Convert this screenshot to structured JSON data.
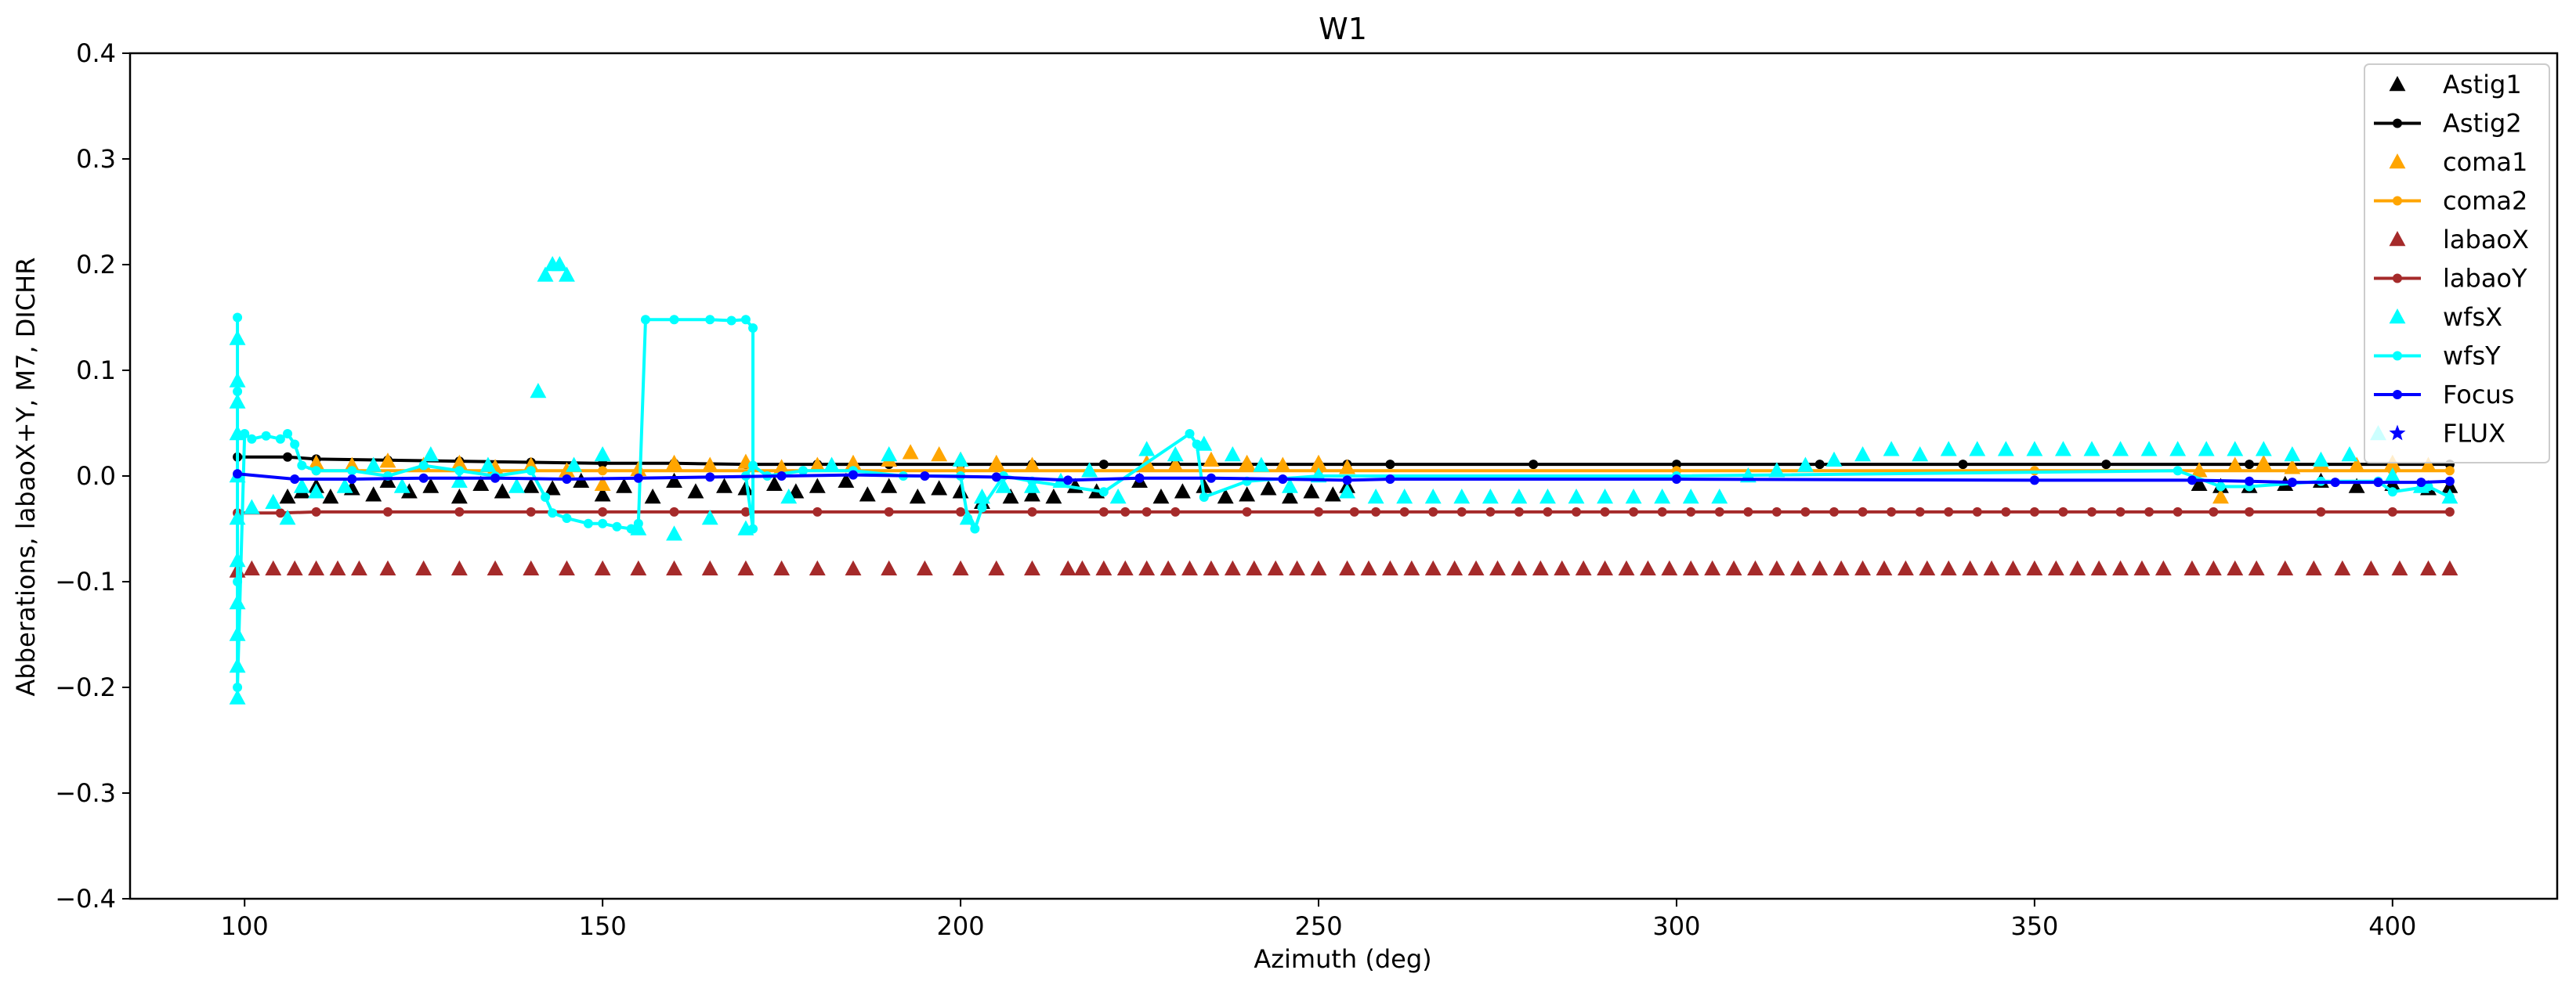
{
  "chart_data": {
    "type": "scatter",
    "title": "W1",
    "xlabel": "Azimuth (deg)",
    "ylabel": "Abberations, labaoX+Y, M7, DICHR",
    "xlim": [
      84,
      423
    ],
    "ylim": [
      -0.4,
      0.4
    ],
    "xticks": [
      100,
      150,
      200,
      250,
      300,
      350,
      400
    ],
    "xtick_labels": [
      "100",
      "150",
      "200",
      "250",
      "300",
      "350",
      "400"
    ],
    "yticks": [
      -0.4,
      -0.3,
      -0.2,
      -0.1,
      0.0,
      0.1,
      0.2,
      0.3,
      0.4
    ],
    "ytick_labels": [
      "−0.4",
      "−0.3",
      "−0.2",
      "−0.1",
      "0.0",
      "0.1",
      "0.2",
      "0.3",
      "0.4"
    ],
    "grid": false,
    "legend_position": "top-right",
    "series": [
      {
        "name": "Astig1",
        "color": "#000000",
        "marker": "triangle",
        "line": false,
        "x": [
          106,
          108,
          110,
          112,
          115,
          118,
          120,
          123,
          126,
          130,
          133,
          136,
          140,
          143,
          147,
          150,
          153,
          157,
          160,
          163,
          167,
          170,
          174,
          177,
          180,
          184,
          187,
          190,
          194,
          197,
          200,
          203,
          207,
          210,
          213,
          216,
          219,
          225,
          228,
          231,
          234,
          237,
          240,
          243,
          246,
          249,
          252,
          254,
          373,
          376,
          380,
          385,
          390,
          395,
          400,
          405,
          408
        ],
        "y": [
          -0.02,
          -0.015,
          -0.01,
          -0.02,
          -0.012,
          -0.018,
          -0.005,
          -0.015,
          -0.01,
          -0.02,
          -0.008,
          -0.015,
          -0.01,
          -0.012,
          -0.005,
          -0.018,
          -0.01,
          -0.02,
          -0.005,
          -0.015,
          -0.01,
          -0.012,
          -0.008,
          -0.015,
          -0.01,
          -0.005,
          -0.018,
          -0.01,
          -0.02,
          -0.012,
          -0.015,
          -0.025,
          -0.02,
          -0.018,
          -0.02,
          -0.01,
          -0.015,
          -0.005,
          -0.02,
          -0.015,
          -0.01,
          -0.02,
          -0.018,
          -0.012,
          -0.02,
          -0.015,
          -0.018,
          -0.01,
          -0.008,
          -0.01,
          -0.01,
          -0.008,
          -0.005,
          -0.01,
          -0.008,
          -0.012,
          -0.01
        ]
      },
      {
        "name": "Astig2",
        "color": "#000000",
        "marker": "dot",
        "line": true,
        "x": [
          99,
          106,
          110,
          120,
          130,
          140,
          150,
          160,
          170,
          180,
          190,
          200,
          210,
          220,
          230,
          240,
          250,
          254,
          260,
          280,
          300,
          320,
          340,
          360,
          380,
          400,
          408
        ],
        "y": [
          0.018,
          0.018,
          0.016,
          0.015,
          0.014,
          0.013,
          0.012,
          0.012,
          0.011,
          0.011,
          0.011,
          0.011,
          0.011,
          0.011,
          0.011,
          0.011,
          0.011,
          0.011,
          0.011,
          0.011,
          0.011,
          0.011,
          0.011,
          0.011,
          0.011,
          0.011,
          0.011
        ]
      },
      {
        "name": "coma1",
        "color": "#ffa500",
        "marker": "triangle",
        "line": false,
        "x": [
          110,
          115,
          120,
          125,
          130,
          135,
          140,
          145,
          150,
          155,
          160,
          165,
          170,
          175,
          180,
          185,
          190,
          193,
          197,
          200,
          205,
          210,
          226,
          230,
          235,
          240,
          245,
          250,
          254,
          373,
          376,
          378,
          382,
          386,
          390,
          395,
          400,
          405
        ],
        "y": [
          0.012,
          0.01,
          0.014,
          0.01,
          0.012,
          0.008,
          0.01,
          0.005,
          -0.008,
          0.006,
          0.012,
          0.01,
          0.013,
          0.008,
          0.01,
          0.012,
          0.015,
          0.022,
          0.02,
          0.015,
          0.012,
          0.01,
          0.012,
          0.01,
          0.015,
          0.012,
          0.01,
          0.012,
          0.008,
          0.005,
          -0.02,
          0.01,
          0.012,
          0.008,
          0.012,
          0.01,
          0.012,
          0.01
        ]
      },
      {
        "name": "coma2",
        "color": "#ffa500",
        "marker": "dot",
        "line": true,
        "x": [
          110,
          150,
          200,
          250,
          300,
          350,
          400,
          408
        ],
        "y": [
          0.005,
          0.005,
          0.005,
          0.005,
          0.005,
          0.005,
          0.005,
          0.005
        ]
      },
      {
        "name": "labaoX",
        "color": "#a52a2a",
        "marker": "triangle",
        "line": false,
        "x": [
          99,
          101,
          104,
          107,
          110,
          113,
          116,
          120,
          125,
          130,
          135,
          140,
          145,
          150,
          155,
          160,
          165,
          170,
          175,
          180,
          185,
          190,
          195,
          200,
          205,
          210,
          215,
          217,
          220,
          223,
          226,
          229,
          232,
          235,
          238,
          241,
          244,
          247,
          250,
          254,
          257,
          260,
          263,
          266,
          269,
          272,
          275,
          278,
          281,
          284,
          287,
          290,
          293,
          296,
          299,
          302,
          305,
          308,
          311,
          314,
          317,
          320,
          323,
          326,
          329,
          332,
          335,
          338,
          341,
          344,
          347,
          350,
          353,
          356,
          359,
          362,
          365,
          368,
          372,
          375,
          378,
          381,
          385,
          389,
          393,
          397,
          401,
          405,
          408
        ],
        "y": [
          -0.09,
          -0.088,
          -0.088,
          -0.088,
          -0.088,
          -0.088,
          -0.088,
          -0.088,
          -0.088,
          -0.088,
          -0.088,
          -0.088,
          -0.088,
          -0.088,
          -0.088,
          -0.088,
          -0.088,
          -0.088,
          -0.088,
          -0.088,
          -0.088,
          -0.088,
          -0.088,
          -0.088,
          -0.088,
          -0.088,
          -0.088,
          -0.088,
          -0.088,
          -0.088,
          -0.088,
          -0.088,
          -0.088,
          -0.088,
          -0.088,
          -0.088,
          -0.088,
          -0.088,
          -0.088,
          -0.088,
          -0.088,
          -0.088,
          -0.088,
          -0.088,
          -0.088,
          -0.088,
          -0.088,
          -0.088,
          -0.088,
          -0.088,
          -0.088,
          -0.088,
          -0.088,
          -0.088,
          -0.088,
          -0.088,
          -0.088,
          -0.088,
          -0.088,
          -0.088,
          -0.088,
          -0.088,
          -0.088,
          -0.088,
          -0.088,
          -0.088,
          -0.088,
          -0.088,
          -0.088,
          -0.088,
          -0.088,
          -0.088,
          -0.088,
          -0.088,
          -0.088,
          -0.088,
          -0.088,
          -0.088,
          -0.088,
          -0.088,
          -0.088,
          -0.088,
          -0.088,
          -0.088,
          -0.088,
          -0.088,
          -0.088,
          -0.088,
          -0.088
        ]
      },
      {
        "name": "labaoY",
        "color": "#a52a2a",
        "marker": "dot",
        "line": true,
        "x": [
          99,
          105,
          110,
          120,
          130,
          140,
          150,
          160,
          170,
          180,
          190,
          200,
          210,
          220,
          223,
          226,
          230,
          240,
          250,
          255,
          258,
          262,
          266,
          270,
          274,
          278,
          282,
          286,
          290,
          294,
          298,
          302,
          306,
          310,
          314,
          318,
          322,
          326,
          330,
          334,
          338,
          342,
          346,
          350,
          354,
          358,
          362,
          366,
          370,
          375,
          380,
          390,
          400,
          408
        ],
        "y": [
          -0.035,
          -0.035,
          -0.034,
          -0.034,
          -0.034,
          -0.034,
          -0.034,
          -0.034,
          -0.034,
          -0.034,
          -0.034,
          -0.034,
          -0.034,
          -0.034,
          -0.034,
          -0.034,
          -0.034,
          -0.034,
          -0.034,
          -0.034,
          -0.034,
          -0.034,
          -0.034,
          -0.034,
          -0.034,
          -0.034,
          -0.034,
          -0.034,
          -0.034,
          -0.034,
          -0.034,
          -0.034,
          -0.034,
          -0.034,
          -0.034,
          -0.034,
          -0.034,
          -0.034,
          -0.034,
          -0.034,
          -0.034,
          -0.034,
          -0.034,
          -0.034,
          -0.034,
          -0.034,
          -0.034,
          -0.034,
          -0.034,
          -0.034,
          -0.034,
          -0.034,
          -0.034,
          -0.034
        ]
      },
      {
        "name": "wfsX",
        "color": "#00ffff",
        "marker": "triangle",
        "line": false,
        "x": [
          99,
          99,
          99,
          99,
          99,
          99,
          99,
          99,
          99,
          99,
          99,
          101,
          104,
          106,
          108,
          110,
          114,
          118,
          122,
          126,
          130,
          134,
          138,
          141,
          142,
          143,
          144,
          145,
          146,
          150,
          155,
          160,
          165,
          170,
          176,
          182,
          190,
          200,
          201,
          203,
          206,
          210,
          214,
          218,
          222,
          226,
          230,
          234,
          238,
          242,
          246,
          250,
          254,
          258,
          262,
          266,
          270,
          274,
          278,
          282,
          286,
          290,
          294,
          298,
          302,
          306,
          310,
          314,
          318,
          322,
          326,
          330,
          334,
          338,
          342,
          346,
          350,
          354,
          358,
          362,
          366,
          370,
          374,
          378,
          382,
          386,
          390,
          394,
          398,
          400,
          404,
          408
        ],
        "y": [
          0.13,
          0.09,
          0.07,
          0.04,
          0.0,
          -0.04,
          -0.08,
          -0.12,
          -0.15,
          -0.18,
          -0.21,
          -0.03,
          -0.025,
          -0.04,
          -0.01,
          -0.015,
          -0.01,
          0.01,
          -0.01,
          0.02,
          -0.005,
          0.01,
          -0.01,
          0.08,
          0.19,
          0.2,
          0.2,
          0.19,
          0.01,
          0.02,
          -0.05,
          -0.055,
          -0.04,
          -0.05,
          -0.02,
          0.01,
          0.02,
          0.015,
          -0.04,
          -0.02,
          -0.01,
          -0.01,
          -0.005,
          0.005,
          -0.02,
          0.025,
          0.02,
          0.03,
          0.02,
          0.01,
          -0.01,
          0.0,
          -0.015,
          -0.02,
          -0.02,
          -0.02,
          -0.02,
          -0.02,
          -0.02,
          -0.02,
          -0.02,
          -0.02,
          -0.02,
          -0.02,
          -0.02,
          -0.02,
          0.0,
          0.005,
          0.01,
          0.015,
          0.02,
          0.025,
          0.02,
          0.025,
          0.025,
          0.025,
          0.025,
          0.025,
          0.025,
          0.025,
          0.025,
          0.025,
          0.025,
          0.025,
          0.025,
          0.02,
          0.015,
          0.02,
          0.04,
          0.0,
          -0.01,
          -0.02
        ]
      },
      {
        "name": "wfsY",
        "color": "#00ffff",
        "marker": "dot",
        "line": true,
        "x": [
          99,
          99,
          99,
          99,
          99,
          100,
          101,
          103,
          105,
          106,
          107,
          108,
          110,
          115,
          120,
          125,
          130,
          135,
          140,
          142,
          143,
          145,
          148,
          150,
          152,
          154,
          155,
          156,
          160,
          165,
          168,
          170,
          171,
          171,
          170,
          171,
          173,
          178,
          185,
          192,
          200,
          201,
          202,
          203,
          206,
          210,
          220,
          232,
          233,
          234,
          240,
          250,
          300,
          370,
          376,
          380,
          390,
          398,
          400,
          405,
          408
        ],
        "y": [
          0.15,
          0.08,
          0.0,
          -0.1,
          -0.2,
          0.04,
          0.035,
          0.038,
          0.035,
          0.04,
          0.03,
          0.01,
          0.005,
          0.005,
          0.0,
          0.01,
          0.005,
          0.0,
          0.005,
          -0.02,
          -0.035,
          -0.04,
          -0.045,
          -0.045,
          -0.048,
          -0.05,
          -0.045,
          0.148,
          0.148,
          0.148,
          0.147,
          0.148,
          0.14,
          -0.05,
          0.0,
          0.01,
          0.0,
          0.005,
          0.005,
          0.0,
          0.0,
          -0.04,
          -0.05,
          -0.03,
          0.0,
          -0.005,
          -0.015,
          0.04,
          0.03,
          -0.02,
          -0.005,
          0.0,
          0.0,
          0.005,
          -0.01,
          -0.01,
          -0.005,
          -0.005,
          -0.015,
          -0.01,
          -0.02
        ]
      },
      {
        "name": "Focus",
        "color": "#0000ff",
        "marker": "dot",
        "line": true,
        "x": [
          99,
          107,
          115,
          125,
          135,
          145,
          155,
          165,
          175,
          185,
          195,
          205,
          215,
          225,
          235,
          245,
          254,
          260,
          300,
          350,
          372,
          380,
          386,
          392,
          398,
          404,
          408
        ],
        "y": [
          0.002,
          -0.003,
          -0.003,
          -0.002,
          -0.002,
          -0.003,
          -0.002,
          -0.001,
          0.0,
          0.001,
          0.0,
          -0.001,
          -0.004,
          -0.002,
          -0.002,
          -0.003,
          -0.004,
          -0.003,
          -0.003,
          -0.004,
          -0.004,
          -0.005,
          -0.006,
          -0.006,
          -0.006,
          -0.006,
          -0.005
        ]
      },
      {
        "name": "FLUX",
        "color": "#0000ff",
        "marker": "star",
        "line": false,
        "x": [],
        "y": []
      }
    ]
  }
}
